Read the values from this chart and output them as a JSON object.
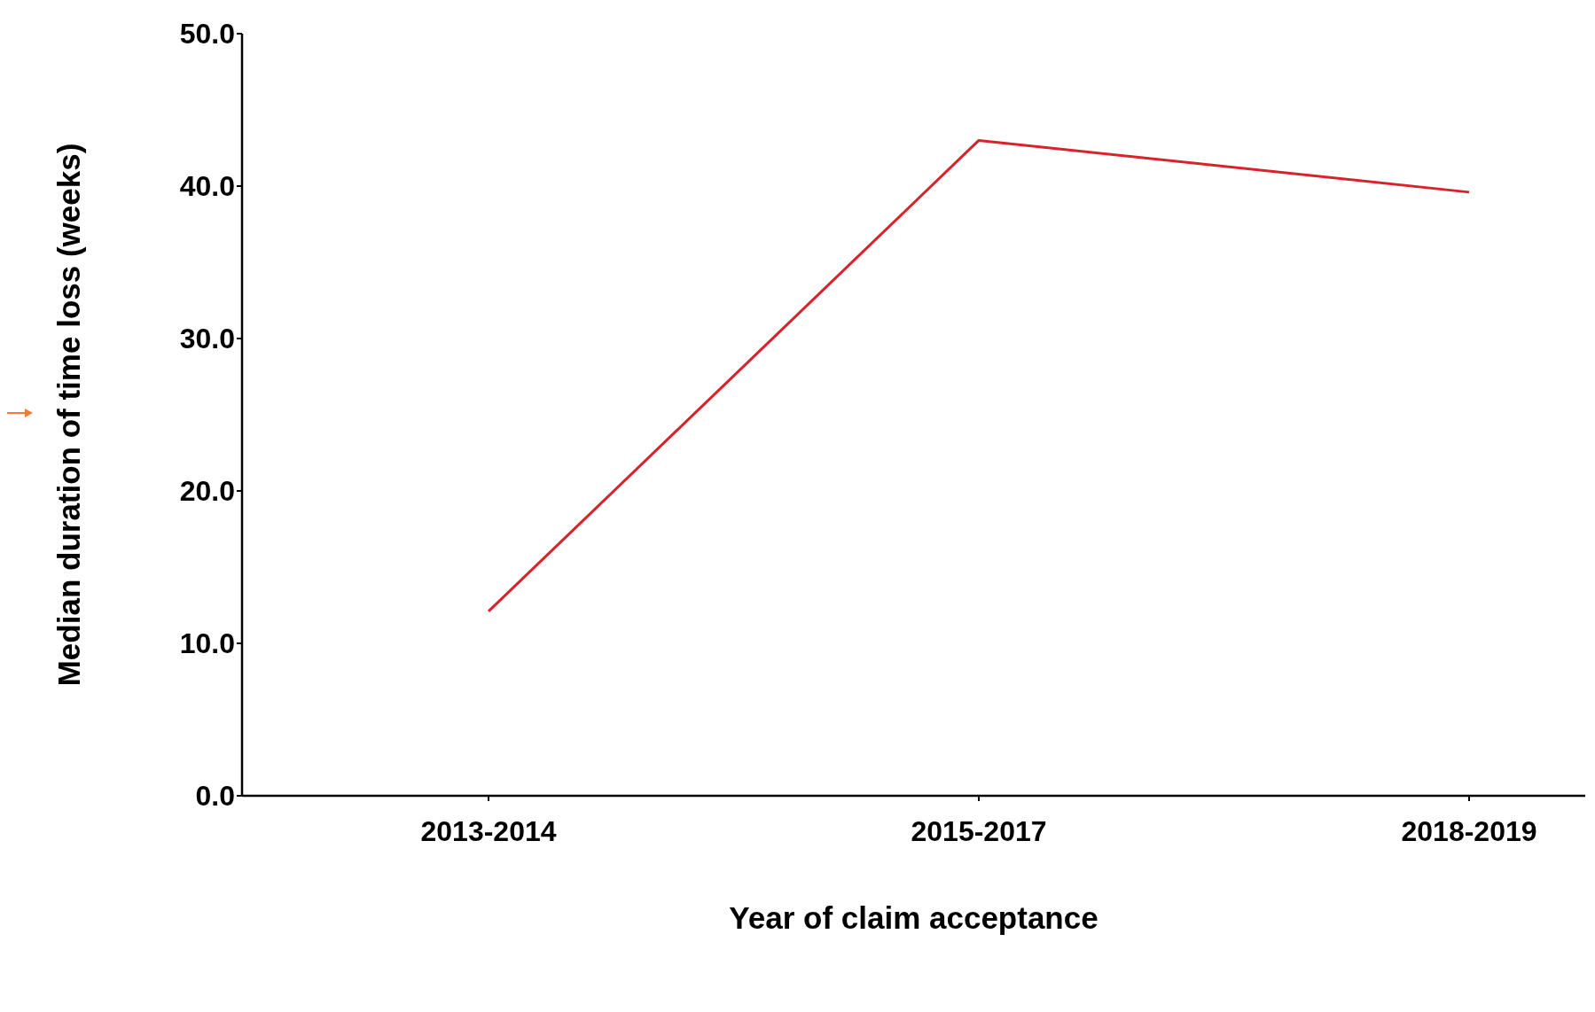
{
  "chart_data": {
    "type": "line",
    "xlabel": "Year of claim acceptance",
    "ylabel": "Median duration of time loss (weeks)",
    "categories": [
      "2013-2014",
      "2015-2017",
      "2018-2019"
    ],
    "series": [
      {
        "color": "#d9232a",
        "values": [
          12.1,
          43.0,
          39.6
        ]
      }
    ],
    "ylim": [
      0,
      50
    ],
    "yticks": [
      {
        "value": 0,
        "label": "0.0"
      },
      {
        "value": 10,
        "label": "10.0"
      },
      {
        "value": 20,
        "label": "20.0"
      },
      {
        "value": 30,
        "label": "30.0"
      },
      {
        "value": 40,
        "label": "40.0"
      },
      {
        "value": 50,
        "label": "50.0"
      }
    ],
    "grid": false,
    "legend": false,
    "marker": "none",
    "line_style": "solid"
  }
}
